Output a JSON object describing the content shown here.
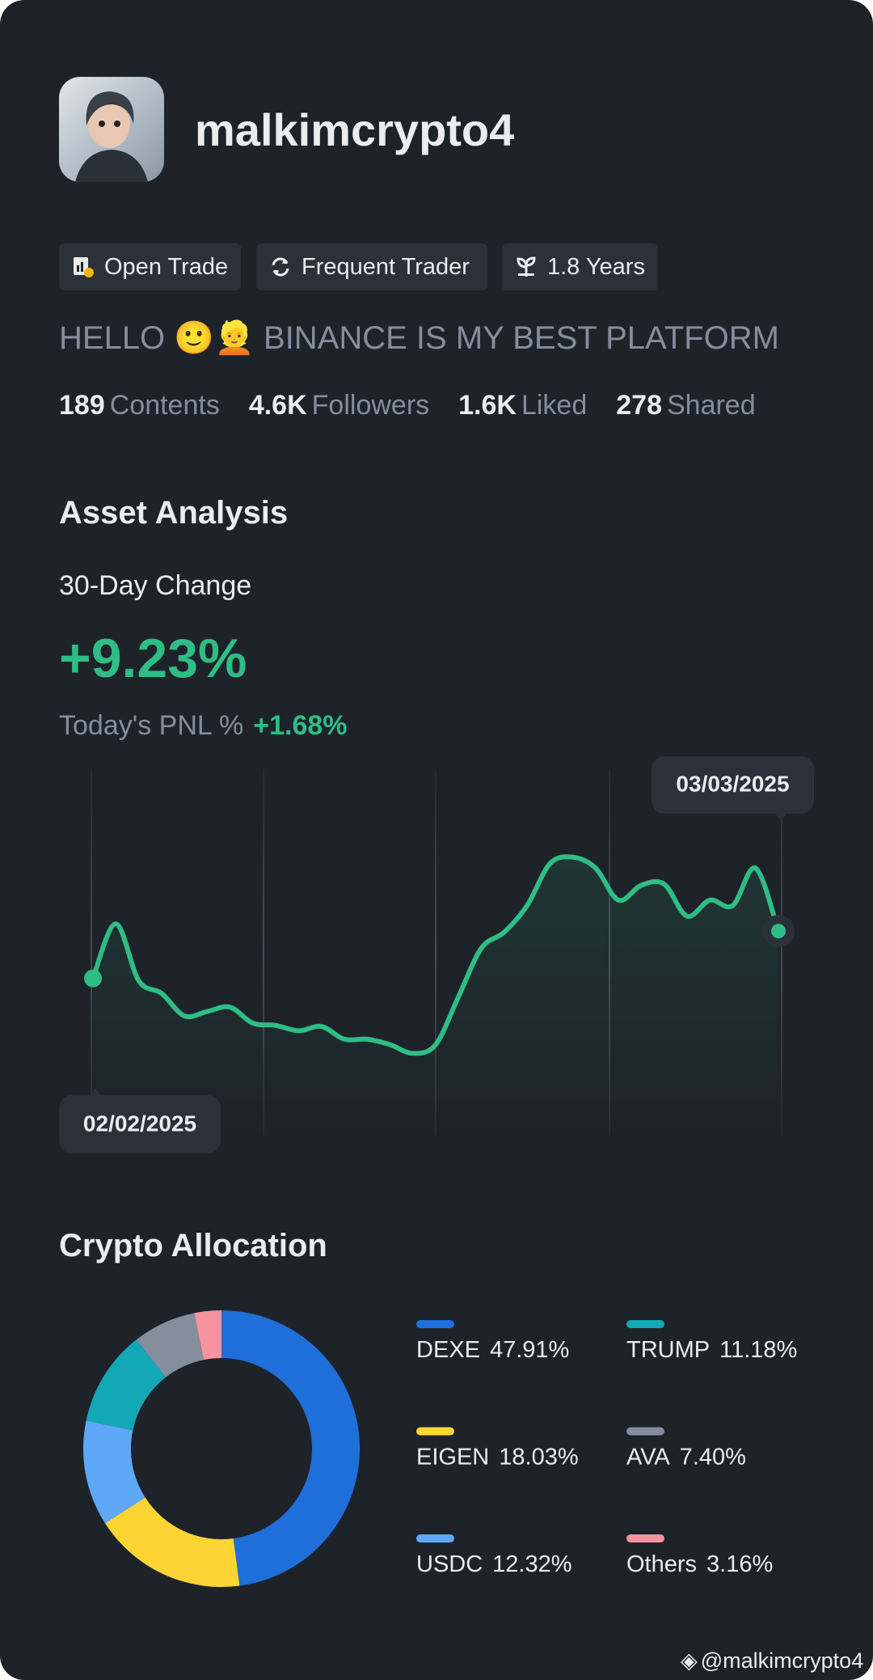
{
  "profile": {
    "username": "malkimcrypto4",
    "badges": [
      "Open Trade",
      "Frequent Trader",
      "1.8 Years"
    ],
    "bio": "HELLO 🙂👱 BINANCE IS MY BEST PLATFORM",
    "stats": [
      {
        "value": "189",
        "label": "Contents"
      },
      {
        "value": "4.6K",
        "label": "Followers"
      },
      {
        "value": "1.6K",
        "label": "Liked"
      },
      {
        "value": "278",
        "label": "Shared"
      }
    ]
  },
  "asset_analysis": {
    "title": "Asset Analysis",
    "change_label": "30-Day Change",
    "change_value": "+9.23%",
    "pnl_label": "Today's PNL %",
    "pnl_value": "+1.68%"
  },
  "chart_data": [
    {
      "type": "line",
      "color": "#2ebd85",
      "date_labels": [
        "02/02/2025",
        "03/03/2025"
      ],
      "ylim": [
        0,
        100
      ],
      "values": [
        43.2,
        58.2,
        42.6,
        39.1,
        32.9,
        34.1,
        35.3,
        30.9,
        30.3,
        28.8,
        30.0,
        26.5,
        26.5,
        25.0,
        22.6,
        25.0,
        38.2,
        51.5,
        55.9,
        63.2,
        74.7,
        76.5,
        73.5,
        64.7,
        68.8,
        69.1,
        60.3,
        64.7,
        63.2,
        73.5,
        56.2
      ]
    },
    {
      "type": "donut",
      "title": "Crypto Allocation",
      "categories": [
        "DEXE",
        "EIGEN",
        "USDC",
        "TRUMP",
        "AVA",
        "Others"
      ],
      "values": [
        47.91,
        18.03,
        12.32,
        11.18,
        7.4,
        3.16
      ],
      "value_labels": [
        "47.91%",
        "18.03%",
        "12.32%",
        "11.18%",
        "7.40%",
        "3.16%"
      ],
      "colors": [
        "#1e6fd9",
        "#fcd535",
        "#5ea8f7",
        "#12a8b5",
        "#848e9c",
        "#f6939f"
      ]
    }
  ],
  "footer": "@malkimcrypto4"
}
